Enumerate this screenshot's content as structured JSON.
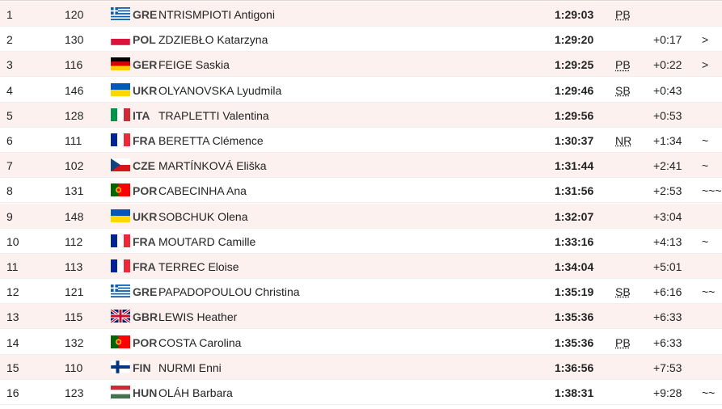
{
  "table": {
    "rows": [
      {
        "rank": 1,
        "bib": 120,
        "country": "GRE",
        "name": "NTRISMPIOTI Antigoni",
        "time": "1:29:03",
        "record": "PB"
      },
      {
        "rank": 2,
        "bib": 130,
        "country": "POL",
        "name": "ZDZIEBŁO Katarzyna",
        "time": "1:29:20",
        "gap": "+0:17",
        "trend": ">"
      },
      {
        "rank": 3,
        "bib": 116,
        "country": "GER",
        "name": "FEIGE Saskia",
        "time": "1:29:25",
        "record": "PB",
        "gap": "+0:22",
        "trend": ">"
      },
      {
        "rank": 4,
        "bib": 146,
        "country": "UKR",
        "name": "OLYANOVSKA Lyudmila",
        "time": "1:29:46",
        "record": "SB",
        "gap": "+0:43"
      },
      {
        "rank": 5,
        "bib": 128,
        "country": "ITA",
        "name": "TRAPLETTI Valentina",
        "time": "1:29:56",
        "gap": "+0:53"
      },
      {
        "rank": 6,
        "bib": 111,
        "country": "FRA",
        "name": "BERETTA Clémence",
        "time": "1:30:37",
        "record": "NR",
        "gap": "+1:34",
        "trend": "~"
      },
      {
        "rank": 7,
        "bib": 102,
        "country": "CZE",
        "name": "MARTÍNKOVÁ Eliška",
        "time": "1:31:44",
        "gap": "+2:41",
        "trend": "~"
      },
      {
        "rank": 8,
        "bib": 131,
        "country": "POR",
        "name": "CABECINHA Ana",
        "time": "1:31:56",
        "gap": "+2:53",
        "trend": "~~~"
      },
      {
        "rank": 9,
        "bib": 148,
        "country": "UKR",
        "name": "SOBCHUK Olena",
        "time": "1:32:07",
        "gap": "+3:04"
      },
      {
        "rank": 10,
        "bib": 112,
        "country": "FRA",
        "name": "MOUTARD Camille",
        "time": "1:33:16",
        "gap": "+4:13",
        "trend": "~"
      },
      {
        "rank": 11,
        "bib": 113,
        "country": "FRA",
        "name": "TERREC Eloise",
        "time": "1:34:04",
        "gap": "+5:01"
      },
      {
        "rank": 12,
        "bib": 121,
        "country": "GRE",
        "name": "PAPADOPOULOU Christina",
        "time": "1:35:19",
        "record": "SB",
        "gap": "+6:16",
        "trend": "~~"
      },
      {
        "rank": 13,
        "bib": 115,
        "country": "GBR",
        "name": "LEWIS Heather",
        "time": "1:35:36",
        "gap": "+6:33"
      },
      {
        "rank": 14,
        "bib": 132,
        "country": "POR",
        "name": "COSTA Carolina",
        "time": "1:35:36",
        "record": "PB",
        "gap": "+6:33"
      },
      {
        "rank": 15,
        "bib": 110,
        "country": "FIN",
        "name": "NURMI Enni",
        "time": "1:36:56",
        "gap": "+7:53"
      },
      {
        "rank": 16,
        "bib": 123,
        "country": "HUN",
        "name": "OLÁH Barbara",
        "time": "1:38:31",
        "gap": "+9:28",
        "trend": "~~"
      }
    ]
  }
}
